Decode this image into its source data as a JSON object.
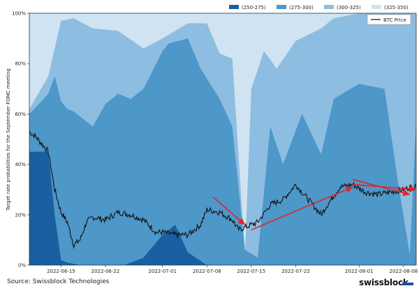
{
  "chart_data": {
    "type": "area",
    "stacked": true,
    "ylabel": "Target rate probabilities for the September FOMC meeting",
    "ylim": [
      0,
      100
    ],
    "yticks": [
      "0%",
      "20%",
      "40%",
      "60%",
      "80%",
      "100%"
    ],
    "x_start": "2022-06-10",
    "x_end": "2022-08-10",
    "xticks": [
      "2022-06-15",
      "2022-06-22",
      "2022-07-01",
      "2022-07-08",
      "2022-07-15",
      "2022-07-22",
      "2022-08-01",
      "2022-08-08"
    ],
    "legend_position": "top",
    "series": [
      {
        "name": "(250-275)",
        "color": "#1a5fa0",
        "dates": [
          "2022-06-10",
          "2022-06-13",
          "2022-06-14",
          "2022-06-15",
          "2022-06-16",
          "2022-06-17",
          "2022-06-18",
          "2022-06-22",
          "2022-06-25",
          "2022-06-28",
          "2022-07-01",
          "2022-07-03",
          "2022-07-05",
          "2022-07-08",
          "2022-08-10"
        ],
        "values": [
          45,
          45,
          20,
          2,
          1,
          0.5,
          0,
          0,
          0,
          3,
          12,
          16,
          5,
          0,
          0
        ]
      },
      {
        "name": "(275-300)",
        "color": "#4d97c9",
        "dates": [
          "2022-06-10",
          "2022-06-13",
          "2022-06-14",
          "2022-06-15",
          "2022-06-16",
          "2022-06-17",
          "2022-06-20",
          "2022-06-22",
          "2022-06-24",
          "2022-06-26",
          "2022-06-28",
          "2022-07-01",
          "2022-07-02",
          "2022-07-05",
          "2022-07-07",
          "2022-07-10",
          "2022-07-12",
          "2022-07-14",
          "2022-07-16",
          "2022-07-18",
          "2022-07-20",
          "2022-07-23",
          "2022-07-26",
          "2022-07-28",
          "2022-08-01",
          "2022-08-03",
          "2022-08-05",
          "2022-08-07",
          "2022-08-09",
          "2022-08-10"
        ],
        "values": [
          60,
          68,
          75,
          65,
          62,
          61,
          55,
          64,
          68,
          66,
          70,
          85,
          88,
          90,
          78,
          66,
          55,
          6,
          3,
          55,
          40,
          60,
          44,
          66,
          72,
          71,
          70,
          35,
          4,
          58
        ]
      },
      {
        "name": "(300-325)",
        "color": "#8dbde0",
        "dates": [
          "2022-06-10",
          "2022-06-13",
          "2022-06-15",
          "2022-06-17",
          "2022-06-20",
          "2022-06-24",
          "2022-06-28",
          "2022-07-01",
          "2022-07-05",
          "2022-07-08",
          "2022-07-10",
          "2022-07-12",
          "2022-07-14",
          "2022-07-15",
          "2022-07-17",
          "2022-07-19",
          "2022-07-22",
          "2022-07-26",
          "2022-07-28",
          "2022-08-01",
          "2022-08-05",
          "2022-08-08",
          "2022-08-10"
        ],
        "values": [
          62,
          75,
          97,
          98,
          94,
          93,
          86,
          90,
          96,
          96,
          84,
          82,
          4,
          70,
          85,
          78,
          89,
          94,
          98,
          100,
          100,
          100,
          100
        ]
      },
      {
        "name": "(325-350)",
        "color": "#d0e3f2",
        "dates": [
          "2022-06-10",
          "2022-07-15",
          "2022-08-10"
        ],
        "values": [
          100,
          100,
          100
        ]
      }
    ],
    "line_series": {
      "name": "BTC Price",
      "color": "#111111",
      "scale_note": "plotted on hidden secondary axis, values in % of primary axis",
      "dates": [
        "2022-06-10",
        "2022-06-11",
        "2022-06-12",
        "2022-06-13",
        "2022-06-14",
        "2022-06-15",
        "2022-06-16",
        "2022-06-17",
        "2022-06-18",
        "2022-06-19",
        "2022-06-20",
        "2022-06-22",
        "2022-06-24",
        "2022-06-26",
        "2022-06-28",
        "2022-06-30",
        "2022-07-01",
        "2022-07-03",
        "2022-07-05",
        "2022-07-07",
        "2022-07-08",
        "2022-07-10",
        "2022-07-12",
        "2022-07-13",
        "2022-07-14",
        "2022-07-16",
        "2022-07-18",
        "2022-07-20",
        "2022-07-22",
        "2022-07-24",
        "2022-07-26",
        "2022-07-27",
        "2022-07-29",
        "2022-07-31",
        "2022-08-02",
        "2022-08-04",
        "2022-08-06",
        "2022-08-08",
        "2022-08-09",
        "2022-08-10"
      ],
      "values": [
        53,
        51,
        48,
        45,
        30,
        21,
        17,
        8,
        10,
        17,
        19,
        18,
        21,
        20,
        18,
        13,
        13,
        12,
        12,
        16,
        22,
        21,
        18,
        14,
        15,
        17,
        24,
        26,
        32,
        26,
        20,
        24,
        31,
        32,
        29,
        28,
        29,
        30,
        31,
        31
      ]
    },
    "annotations": [
      {
        "type": "arrow",
        "color": "#e0252a",
        "from": [
          "2022-07-09",
          27
        ],
        "to": [
          "2022-07-14",
          16
        ]
      },
      {
        "type": "arrow",
        "color": "#e0252a",
        "from": [
          "2022-07-15",
          14
        ],
        "to": [
          "2022-07-31",
          31
        ]
      },
      {
        "type": "arrow",
        "color": "#e0252a",
        "from": [
          "2022-07-31",
          34
        ],
        "to": [
          "2022-08-09",
          28
        ]
      },
      {
        "type": "arrow",
        "color": "#e0252a",
        "from": [
          "2022-07-31",
          32
        ],
        "to": [
          "2022-08-12",
          30
        ]
      }
    ]
  },
  "legend_line_label": "BTC Price",
  "source": "Source: Swissblock Technologies",
  "brand": "swissblock"
}
